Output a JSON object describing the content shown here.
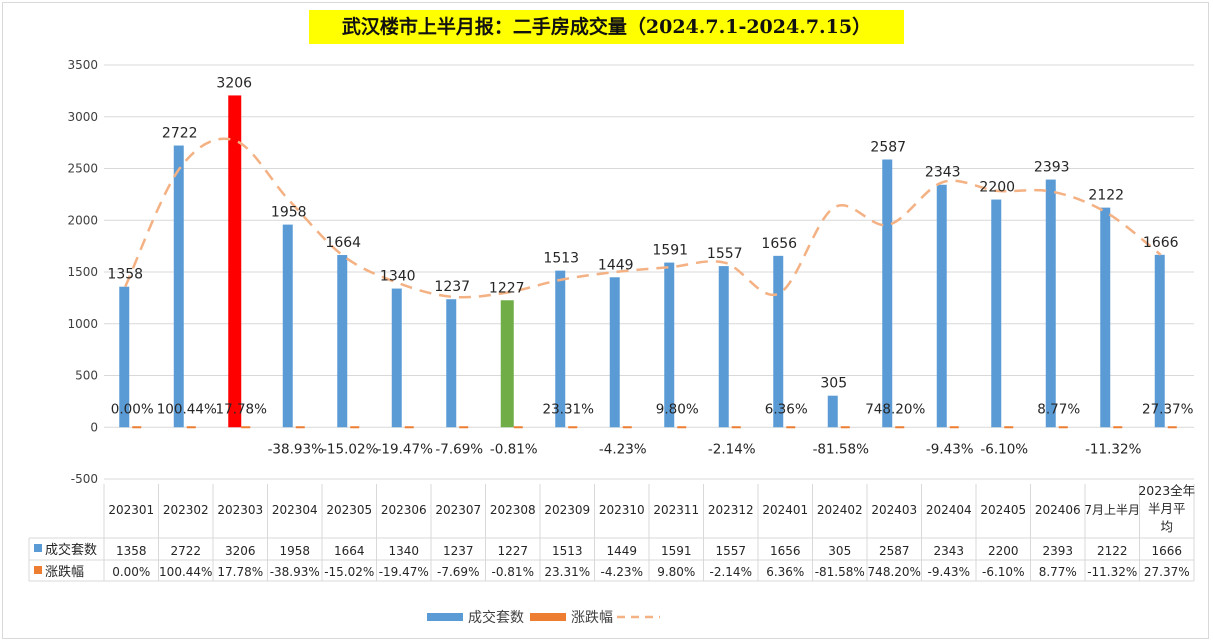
{
  "chart_data": {
    "type": "bar",
    "title": "武汉楼市上半月报：二手房成交量（2024.7.1-2024.7.15）",
    "categories": [
      "202301",
      "202302",
      "202303",
      "202304",
      "202305",
      "202306",
      "202307",
      "202308",
      "202309",
      "202310",
      "202311",
      "202312",
      "202401",
      "202402",
      "202403",
      "202404",
      "202405",
      "202406",
      "7月上半月",
      "2023全年半月平均"
    ],
    "series": [
      {
        "name": "成交套数",
        "values": [
          1358,
          2722,
          3206,
          1958,
          1664,
          1340,
          1237,
          1227,
          1513,
          1449,
          1591,
          1557,
          1656,
          305,
          2587,
          2343,
          2200,
          2393,
          2122,
          1666
        ],
        "color": "#5b9bd5"
      },
      {
        "name": "涨跌幅",
        "values": [
          "0.00%",
          "100.44%",
          "17.78%",
          "-38.93%",
          "-15.02%",
          "-19.47%",
          "-7.69%",
          "-0.81%",
          "23.31%",
          "-4.23%",
          "9.80%",
          "-2.14%",
          "6.36%",
          "-81.58%",
          "748.20%",
          "-9.43%",
          "-6.10%",
          "8.77%",
          "-11.32%",
          "27.37%"
        ],
        "color": "#ed7d31"
      }
    ],
    "highlight": {
      "202303": "#ff0000",
      "202308": "#70ad47"
    },
    "trendline": {
      "style": "dashed",
      "color": "#f4b183"
    },
    "yticks": [
      -500,
      0,
      500,
      1000,
      1500,
      2000,
      2500,
      3000,
      3500
    ],
    "ylim": [
      -500,
      3500
    ],
    "grid": true,
    "legend_position": "bottom",
    "data_table": true
  }
}
